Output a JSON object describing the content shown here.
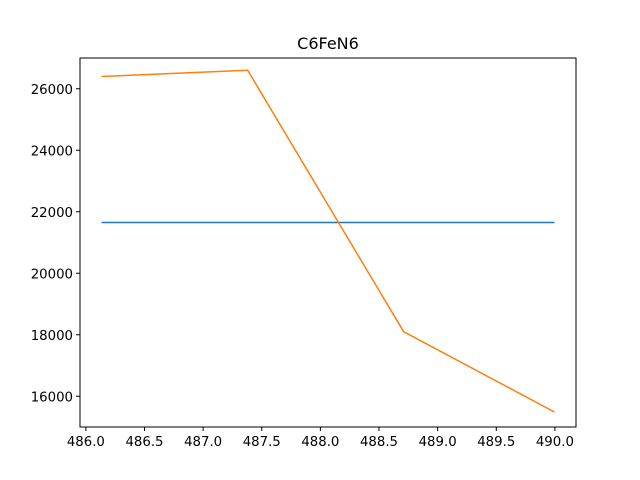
{
  "chart_data": {
    "type": "line",
    "title": "C6FeN6",
    "xlabel": "",
    "ylabel": "",
    "xlim": [
      485.95,
      490.18
    ],
    "ylim": [
      15000,
      27000
    ],
    "grid": false,
    "x_ticks": [
      486.0,
      486.5,
      487.0,
      487.5,
      488.0,
      488.5,
      489.0,
      489.5,
      490.0
    ],
    "x_tick_labels": [
      "486.0",
      "486.5",
      "487.0",
      "487.5",
      "488.0",
      "488.5",
      "489.0",
      "489.5",
      "490.0"
    ],
    "y_ticks": [
      16000,
      18000,
      20000,
      22000,
      24000,
      26000
    ],
    "y_tick_labels": [
      "16000",
      "18000",
      "20000",
      "22000",
      "24000",
      "26000"
    ],
    "series": [
      {
        "color": "#1f77b4",
        "x": [
          486.14,
          489.99
        ],
        "y": [
          21650,
          21650
        ]
      },
      {
        "color": "#ff7f0e",
        "x": [
          486.14,
          487.38,
          488.71,
          489.99
        ],
        "y": [
          26400,
          26600,
          18100,
          15500
        ]
      }
    ]
  }
}
